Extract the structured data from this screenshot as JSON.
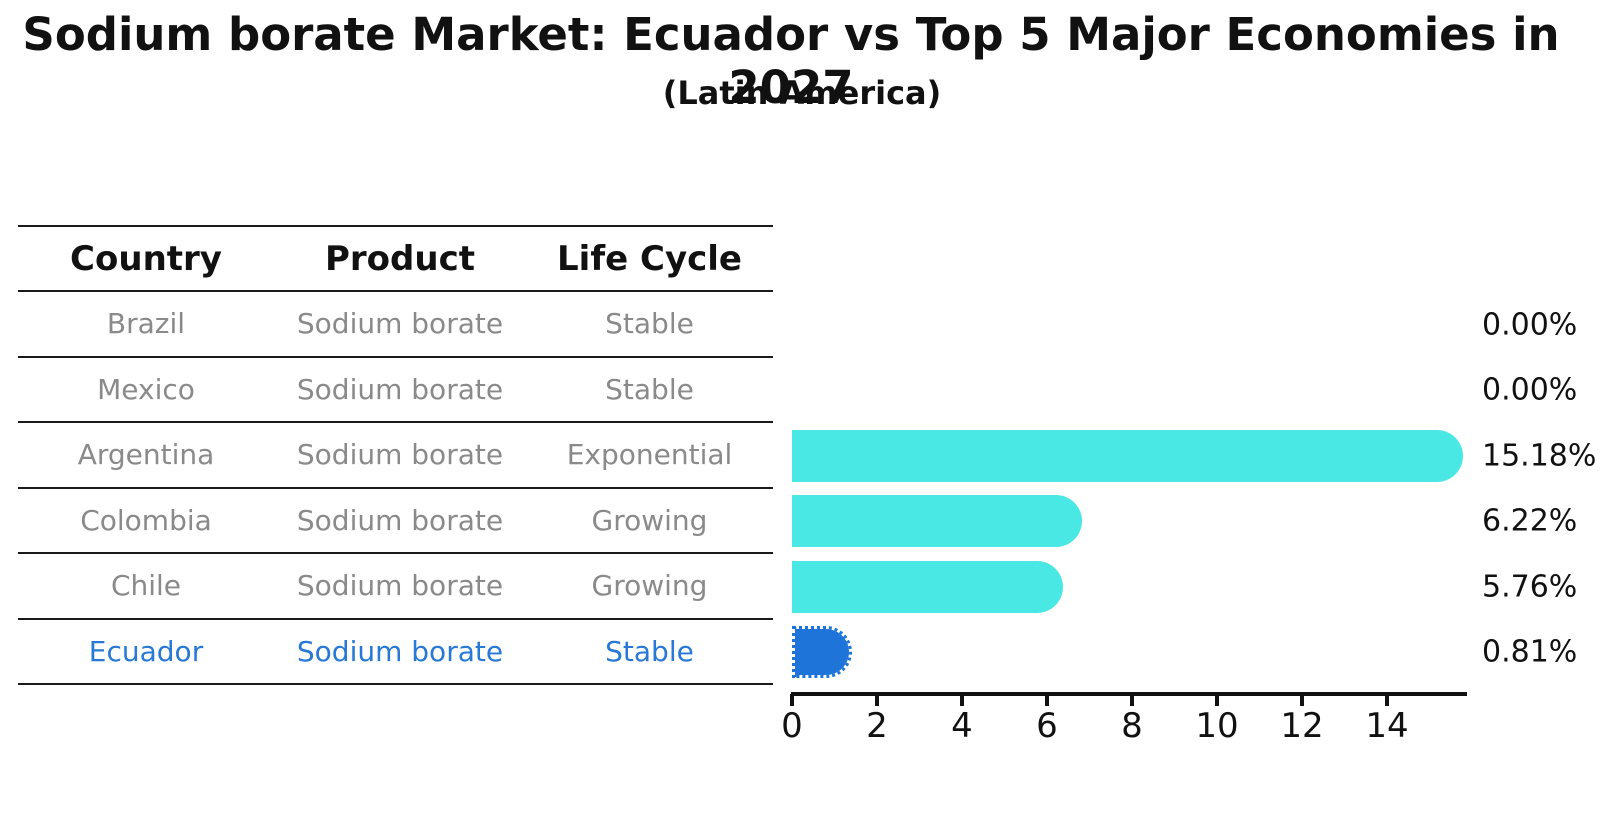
{
  "title": "Sodium borate Market: Ecuador vs Top 5 Major Economies in 2027",
  "subtitle": "(Latin America)",
  "table": {
    "headers": [
      "Country",
      "Product",
      "Life Cycle"
    ]
  },
  "rows": [
    {
      "country": "Brazil",
      "product": "Sodium borate",
      "life_cycle": "Stable",
      "share_label": "0.00%"
    },
    {
      "country": "Mexico",
      "product": "Sodium borate",
      "life_cycle": "Stable",
      "share_label": "0.00%"
    },
    {
      "country": "Argentina",
      "product": "Sodium borate",
      "life_cycle": "Exponential",
      "share_label": "15.18%"
    },
    {
      "country": "Colombia",
      "product": "Sodium borate",
      "life_cycle": "Growing",
      "share_label": "6.22%"
    },
    {
      "country": "Chile",
      "product": "Sodium borate",
      "life_cycle": "Growing",
      "share_label": "5.76%"
    },
    {
      "country": "Ecuador",
      "product": "Sodium borate",
      "life_cycle": "Stable",
      "share_label": "0.81%"
    }
  ],
  "chart_data": {
    "type": "bar",
    "orientation": "horizontal",
    "title": "Sodium borate Market: Ecuador vs Top 5 Major Economies in 2027",
    "subtitle": "(Latin America)",
    "categories": [
      "Brazil",
      "Mexico",
      "Argentina",
      "Colombia",
      "Chile",
      "Ecuador"
    ],
    "values": [
      0.0,
      0.0,
      15.18,
      6.22,
      5.76,
      0.81
    ],
    "value_labels": [
      "0.00%",
      "0.00%",
      "15.18%",
      "6.22%",
      "5.76%",
      "0.81%"
    ],
    "xlabel": "",
    "ylabel": "",
    "xlim": [
      0,
      15.9
    ],
    "xticks": [
      0,
      2,
      4,
      6,
      8,
      10,
      12,
      14
    ],
    "grid": false,
    "legend": false,
    "highlight_category": "Ecuador",
    "highlight_index": 5
  },
  "colors": {
    "bar_cyan": "#4AE8E4",
    "bar_blue": "#1E74D8",
    "text_blue": "#2878D6",
    "text_gray": "#8A8A8A",
    "axis_black": "#111111"
  }
}
